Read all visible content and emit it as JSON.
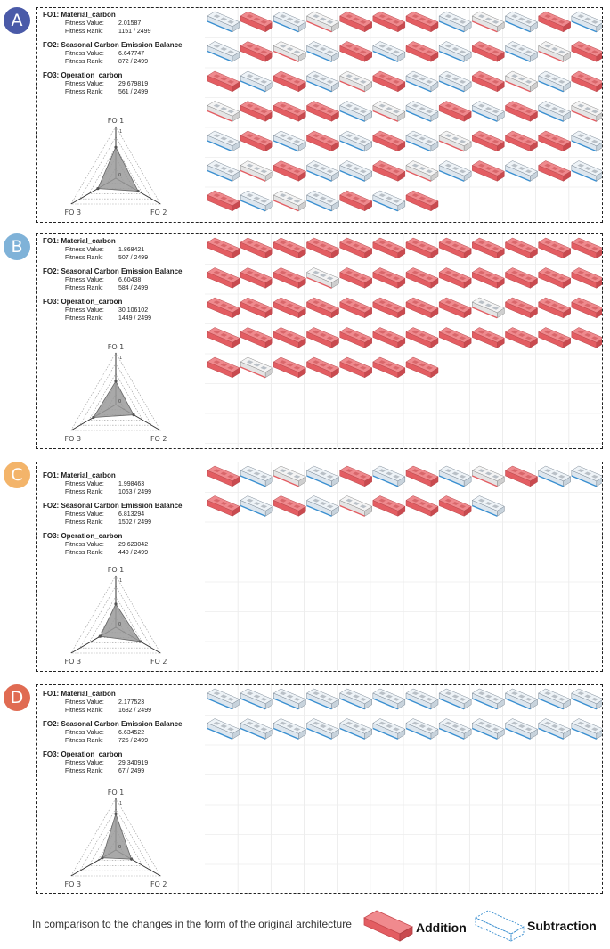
{
  "panels": [
    {
      "label": "A",
      "color": "#4a5aa8",
      "fo1": {
        "title": "FO1:  Material_carbon",
        "value": "2.01587",
        "rank": "1151 / 2499"
      },
      "fo2": {
        "title": "FO2:  Seasonal Carbon Emission Balance",
        "value": "6.647747",
        "rank": "872 / 2499"
      },
      "fo3": {
        "title": "FO3:  Operation_carbon",
        "value": "29.679819",
        "rank": "561 / 2499"
      },
      "radar": {
        "fo1": 0.6,
        "fo2": 0.5,
        "fo3": 0.4
      },
      "rows": [
        12,
        12,
        12,
        12,
        12,
        12,
        7
      ],
      "pattern": "mixed"
    },
    {
      "label": "B",
      "color": "#7fb2d8",
      "fo1": {
        "title": "FO1:  Material_carbon",
        "value": "1.868421",
        "rank": "507 / 2499"
      },
      "fo2": {
        "title": "FO2:  Seasonal Carbon Emission Balance",
        "value": "6.60438",
        "rank": "584 / 2499"
      },
      "fo3": {
        "title": "FO3:  Operation_carbon",
        "value": "30.106102",
        "rank": "1449 / 2499"
      },
      "radar": {
        "fo1": 0.45,
        "fo2": 0.4,
        "fo3": 0.5
      },
      "rows": [
        12,
        12,
        12,
        12,
        7
      ],
      "pattern": "red"
    },
    {
      "label": "C",
      "color": "#f3b46a",
      "fo1": {
        "title": "FO1:  Material_carbon",
        "value": "1.998463",
        "rank": "1063 / 2499"
      },
      "fo2": {
        "title": "FO2:  Seasonal Carbon Emission Balance",
        "value": "6.813294",
        "rank": "1502 / 2499"
      },
      "fo3": {
        "title": "FO3:  Operation_carbon",
        "value": "29.623042",
        "rank": "440 / 2499"
      },
      "radar": {
        "fo1": 0.45,
        "fo2": 0.55,
        "fo3": 0.35
      },
      "rows": [
        12,
        9
      ],
      "pattern": "mixed"
    },
    {
      "label": "D",
      "color": "#e06b52",
      "fo1": {
        "title": "FO1:  Material_carbon",
        "value": "2.177523",
        "rank": "1682 / 2499"
      },
      "fo2": {
        "title": "FO2:  Seasonal Carbon Emission Balance",
        "value": "6.634522",
        "rank": "725 / 2499"
      },
      "fo3": {
        "title": "FO3:  Operation_carbon",
        "value": "29.340919",
        "rank": "67 / 2499"
      },
      "radar": {
        "fo1": 0.7,
        "fo2": 0.35,
        "fo3": 0.3
      },
      "rows": [
        12,
        12
      ],
      "pattern": "blue"
    }
  ],
  "labels": {
    "fitness_value": "Fitness Value:",
    "fitness_rank": "Fitness Rank:",
    "axis_fo1": "FO 1",
    "axis_fo2": "FO 2",
    "axis_fo3": "FO 3",
    "scale_top": "1",
    "scale_zero": "0"
  },
  "legend": {
    "caption": "In comparison to the changes in the form of the original architecture",
    "addition": "Addition",
    "subtraction": "Subtraction",
    "addition_color": "#e35d62",
    "subtraction_color": "#3a8fd0"
  }
}
